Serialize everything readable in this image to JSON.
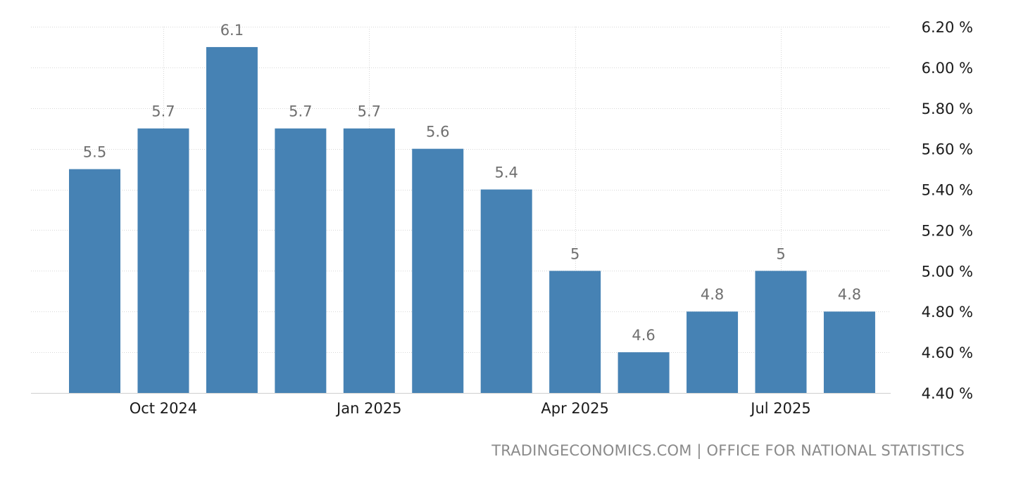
{
  "chart_data": {
    "type": "bar",
    "title": "",
    "xlabel": "",
    "ylabel": "",
    "categories": [
      "Sep 2024",
      "Oct 2024",
      "Nov 2024",
      "Dec 2024",
      "Jan 2025",
      "Feb 2025",
      "Mar 2025",
      "Apr 2025",
      "May 2025",
      "Jun 2025",
      "Jul 2025",
      "Aug 2025"
    ],
    "values": [
      5.5,
      5.7,
      6.1,
      5.7,
      5.7,
      5.6,
      5.4,
      5.0,
      4.6,
      4.8,
      5.0,
      4.8
    ],
    "value_labels": [
      "5.5",
      "5.7",
      "6.1",
      "5.7",
      "5.7",
      "5.6",
      "5.4",
      "5",
      "4.6",
      "4.8",
      "5",
      "4.8"
    ],
    "x_tick_labels": [
      {
        "label": "Oct 2024",
        "category_index": 1
      },
      {
        "label": "Jan 2025",
        "category_index": 4
      },
      {
        "label": "Apr 2025",
        "category_index": 7
      },
      {
        "label": "Jul 2025",
        "category_index": 10
      }
    ],
    "y_ticks": [
      4.4,
      4.6,
      4.8,
      5.0,
      5.2,
      5.4,
      5.6,
      5.8,
      6.0,
      6.2
    ],
    "y_tick_labels": [
      "4.40 %",
      "4.60 %",
      "4.80 %",
      "5.00 %",
      "5.20 %",
      "5.40 %",
      "5.60 %",
      "5.80 %",
      "6.00 %",
      "6.20 %"
    ],
    "ylim": [
      4.4,
      6.2
    ],
    "y_axis_side": "right",
    "grid": true,
    "bar_color": "#4682b4"
  },
  "source": {
    "text": "TRADINGECONOMICS.COM | OFFICE FOR NATIONAL STATISTICS"
  }
}
